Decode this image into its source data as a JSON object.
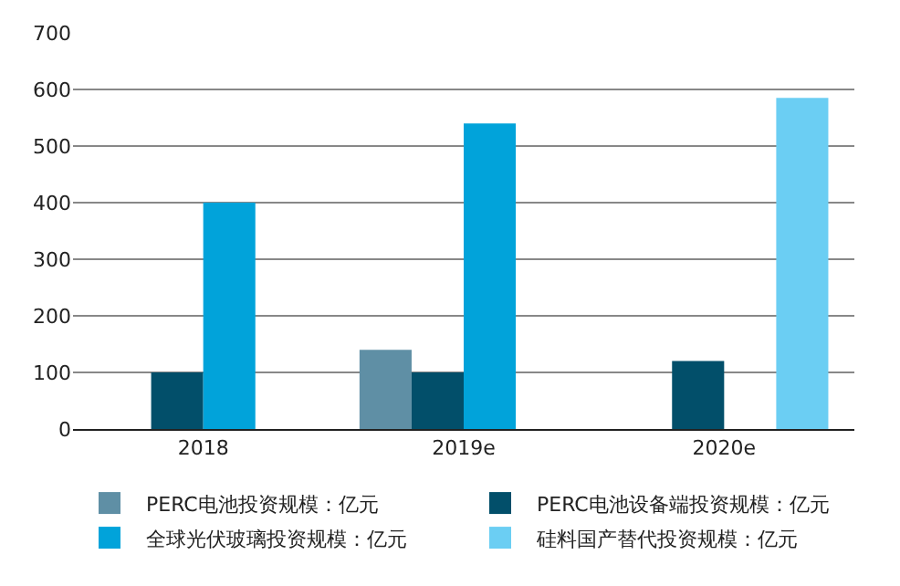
{
  "chart_data": {
    "type": "bar",
    "categories": [
      "2018",
      "2019e",
      "2020e"
    ],
    "series": [
      {
        "name": "PERC电池投资规模：亿元",
        "color": "#5f8fa5",
        "values": [
          null,
          140,
          null
        ]
      },
      {
        "name": "PERC电池设备端投资规模：亿元",
        "color": "#024f6a",
        "values": [
          100,
          100,
          120
        ]
      },
      {
        "name": "全球光伏玻璃投资规模：亿元",
        "color": "#01a3da",
        "values": [
          400,
          540,
          null
        ]
      },
      {
        "name": "硅料国产替代投资规模：亿元",
        "color": "#6bcef3",
        "values": [
          null,
          null,
          585
        ]
      }
    ],
    "ylim": [
      0,
      700
    ],
    "yticks": [
      0,
      100,
      200,
      300,
      400,
      500,
      600,
      700
    ],
    "grid": "y",
    "legend": "bottom"
  }
}
